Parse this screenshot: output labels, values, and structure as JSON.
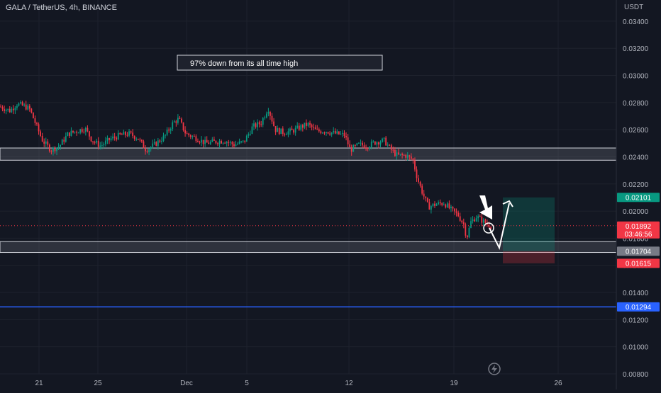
{
  "header": {
    "symbol_title": "GALA / TetherUS, 4h, BINANCE",
    "currency": "USDT"
  },
  "annotation": {
    "text": "97% down from its all time high"
  },
  "price_badges": [
    {
      "label": "0.02101",
      "value": 0.02101,
      "color": "#089981"
    },
    {
      "label": "0.01892",
      "sub": "03:46:56",
      "value": 0.01892,
      "color": "#f23645"
    },
    {
      "label": "0.01704",
      "value": 0.01704,
      "color": "#787b86"
    },
    {
      "label": "0.01615",
      "value": 0.01615,
      "color": "#f23645"
    },
    {
      "label": "0.01294",
      "value": 0.01294,
      "color": "#2962ff"
    }
  ],
  "chart_data": {
    "type": "candlestick",
    "title": "GALA / TetherUS, 4h, BINANCE",
    "ylabel": "USDT",
    "ylim": [
      0.008,
      0.035
    ],
    "y_ticks": [
      "0.03400",
      "0.03200",
      "0.03000",
      "0.02800",
      "0.02600",
      "0.02400",
      "0.02200",
      "0.02000",
      "0.01800",
      "0.01600",
      "0.01400",
      "0.01200",
      "0.01000",
      "0.00800"
    ],
    "x_ticks": [
      "21",
      "25",
      "Dec",
      "5",
      "12",
      "19",
      "26"
    ],
    "last_price": 0.01892,
    "support_zones": [
      {
        "top": 0.02465,
        "bottom": 0.02375
      },
      {
        "top": 0.01775,
        "bottom": 0.01695
      }
    ],
    "horizontal_line": 0.01294,
    "position": {
      "entry": 0.01704,
      "target": 0.02101,
      "stop": 0.01615
    },
    "grid": true,
    "legend": "none"
  }
}
